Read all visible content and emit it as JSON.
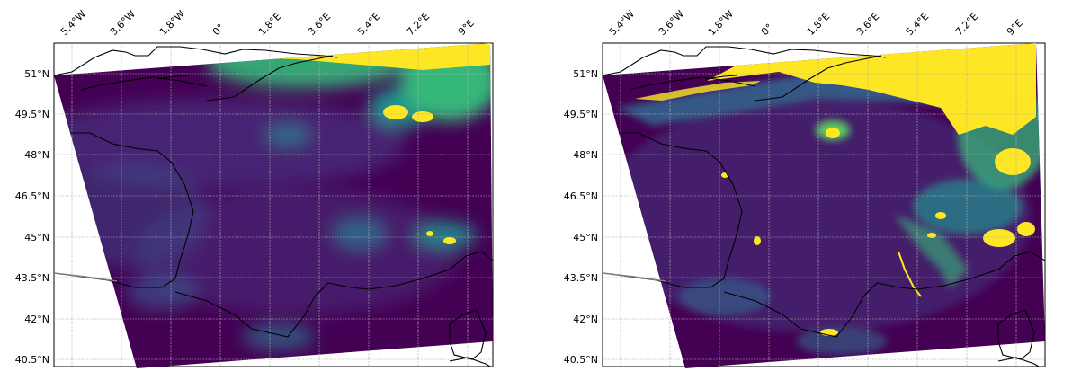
{
  "figure": {
    "panels": [
      {
        "id": "left",
        "longitude_ticks": [
          "5.4°W",
          "3.6°W",
          "1.8°W",
          "0°",
          "1.8°E",
          "3.6°E",
          "5.4°E",
          "7.2°E",
          "9°E"
        ],
        "latitude_ticks": [
          "51°N",
          "49.5°N",
          "48°N",
          "46.5°N",
          "45°N",
          "43.5°N",
          "42°N",
          "40.5°N"
        ],
        "colormap": "viridis"
      },
      {
        "id": "right",
        "longitude_ticks": [
          "5.4°W",
          "3.6°W",
          "1.8°W",
          "0°",
          "1.8°E",
          "3.6°E",
          "5.4°E",
          "7.2°E",
          "9°E"
        ],
        "latitude_ticks": [
          "51°N",
          "49.5°N",
          "48°N",
          "46.5°N",
          "45°N",
          "43.5°N",
          "42°N",
          "40.5°N"
        ],
        "colormap": "viridis"
      }
    ],
    "colors": {
      "background": "#440154",
      "low": "#3b528b",
      "mid": "#21908d",
      "high": "#5dc963",
      "max": "#fde725",
      "coastline": "#000000",
      "gridline": "#b0b0b0"
    }
  }
}
